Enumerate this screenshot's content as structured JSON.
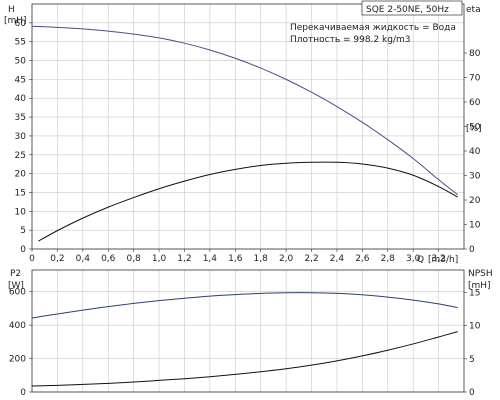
{
  "colors": {
    "head": "#4a4f86",
    "efficiency": "#111111",
    "power": "#2b3f75",
    "npsh": "#111111",
    "grid": "#c8c8c8"
  },
  "chart_data": [
    {
      "type": "line",
      "info_box": "SQE 2-50NE, 50Hz",
      "annotations": [
        "Перекачиваемая жидкость = Вода",
        "Плотность = 998.2 kg/m3"
      ],
      "xlabel": "Q",
      "xunit": "[m3/h]",
      "xlim": [
        0,
        3.4
      ],
      "x_ticks": [
        "0",
        "0,2",
        "0,4",
        "0,6",
        "0,8",
        "1,0",
        "1,2",
        "1,4",
        "1,6",
        "1,8",
        "2,0",
        "2,2",
        "2,4",
        "2,6",
        "2,8",
        "3,0",
        "3,2"
      ],
      "y_left": {
        "label": "H",
        "unit": "[mH]",
        "ylim": [
          0,
          65
        ],
        "ticks": [
          "0",
          "5",
          "10",
          "15",
          "20",
          "25",
          "30",
          "35",
          "40",
          "45",
          "50",
          "55",
          "60"
        ]
      },
      "y_right": {
        "label": "eta",
        "unit": "[%]",
        "ylim": [
          0,
          100
        ],
        "ticks": [
          "0",
          "10",
          "20",
          "30",
          "40",
          "50",
          "60",
          "70",
          "80"
        ]
      },
      "grid": true,
      "series": [
        {
          "axis": "left",
          "x": [
            0,
            0.2,
            0.4,
            0.6,
            0.8,
            1.0,
            1.2,
            1.4,
            1.6,
            1.8,
            2.0,
            2.2,
            2.4,
            2.6,
            2.8,
            3.0,
            3.2,
            3.35
          ],
          "values": [
            59.1,
            58.8,
            58.4,
            57.8,
            57.0,
            56.0,
            54.6,
            52.8,
            50.6,
            48.0,
            45.0,
            41.6,
            37.8,
            33.6,
            29.0,
            24.0,
            18.4,
            14.4
          ]
        },
        {
          "axis": "right",
          "x": [
            0.05,
            0.2,
            0.4,
            0.6,
            0.8,
            1.0,
            1.2,
            1.4,
            1.6,
            1.8,
            2.0,
            2.2,
            2.4,
            2.6,
            2.8,
            3.0,
            3.2,
            3.35
          ],
          "values": [
            3.2,
            7.5,
            12.6,
            17.1,
            21.0,
            24.6,
            27.7,
            30.4,
            32.5,
            34.1,
            35.0,
            35.4,
            35.4,
            34.7,
            33.0,
            30.1,
            25.5,
            21.2
          ]
        }
      ]
    },
    {
      "type": "line",
      "xlim": [
        0,
        3.4
      ],
      "y_left": {
        "label": "P2",
        "unit": "[W]",
        "ylim": [
          0,
          730
        ],
        "ticks": [
          "0",
          "200",
          "400",
          "600"
        ]
      },
      "y_right": {
        "label": "NPSH",
        "unit": "[mH]",
        "ylim": [
          0,
          18.4
        ],
        "ticks": [
          "0",
          "5",
          "10",
          "15"
        ]
      },
      "grid": true,
      "series": [
        {
          "axis": "left",
          "x": [
            0,
            0.2,
            0.4,
            0.6,
            0.8,
            1.0,
            1.2,
            1.4,
            1.6,
            1.8,
            2.0,
            2.2,
            2.4,
            2.6,
            2.8,
            3.0,
            3.2,
            3.35
          ],
          "values": [
            443,
            467,
            490,
            511,
            530,
            547,
            561,
            574,
            583,
            590,
            594,
            594,
            590,
            582,
            568,
            550,
            527,
            505
          ]
        },
        {
          "axis": "right",
          "x": [
            0,
            0.2,
            0.4,
            0.6,
            0.8,
            1.0,
            1.2,
            1.4,
            1.6,
            1.8,
            2.0,
            2.2,
            2.4,
            2.6,
            2.8,
            3.0,
            3.2,
            3.35
          ],
          "values": [
            0.9,
            1.0,
            1.15,
            1.3,
            1.5,
            1.75,
            2.0,
            2.3,
            2.65,
            3.05,
            3.5,
            4.05,
            4.7,
            5.45,
            6.3,
            7.25,
            8.3,
            9.1
          ]
        }
      ]
    }
  ]
}
